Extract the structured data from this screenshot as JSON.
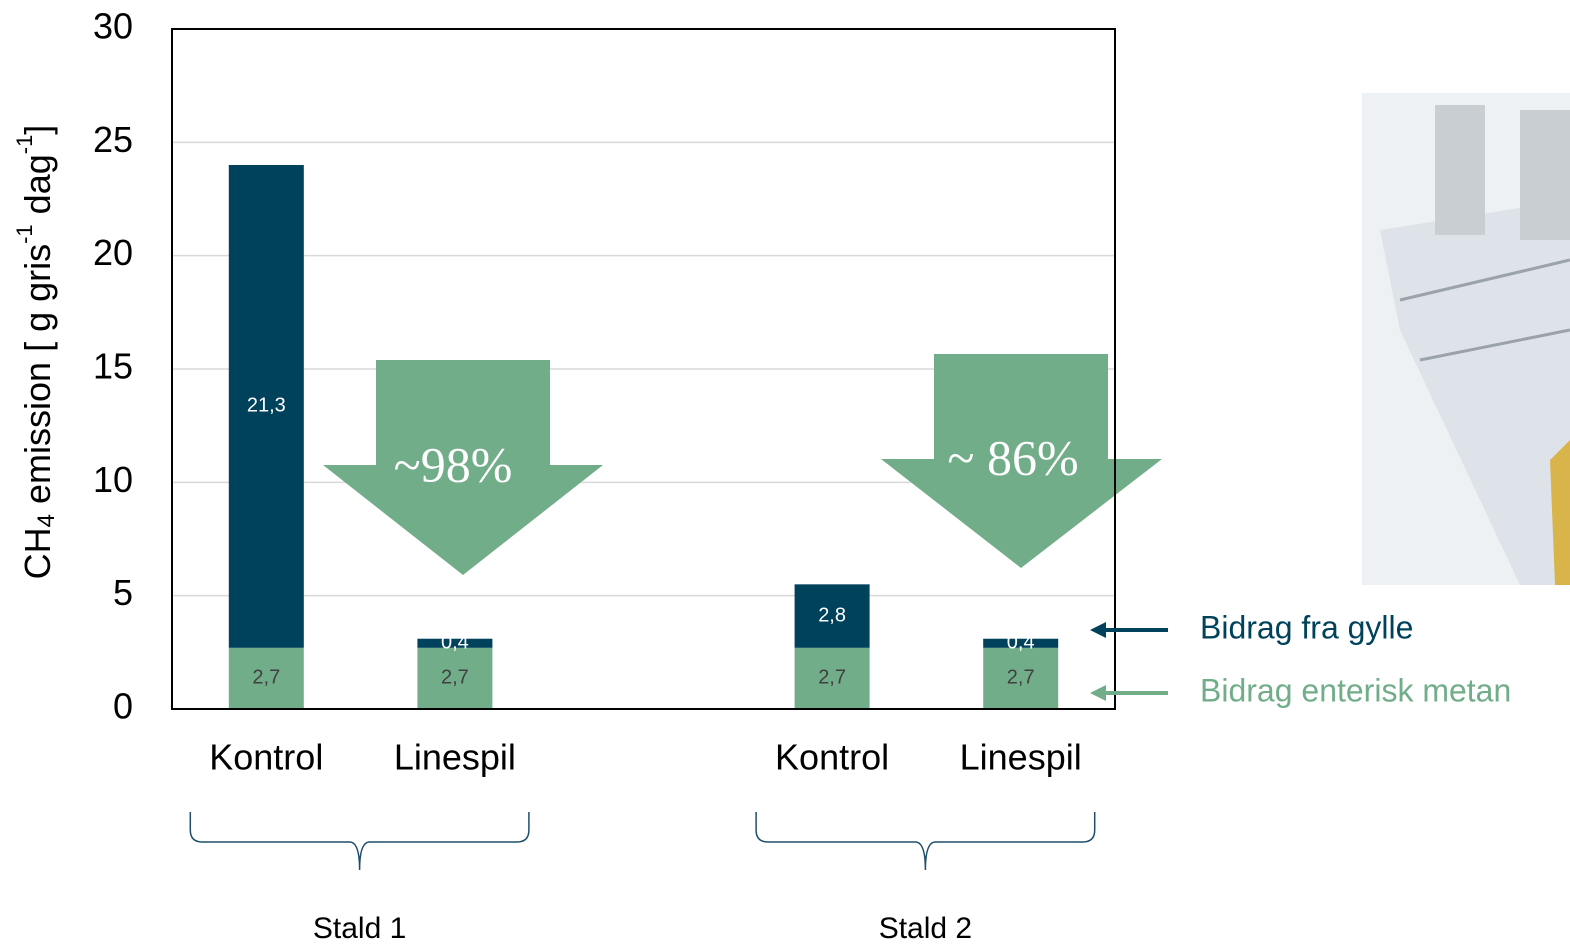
{
  "chart_data": {
    "type": "stacked-bar",
    "ylabel_parts": [
      "CH",
      "4",
      " emission [ g gris",
      "-1",
      " dag",
      "-1",
      "]"
    ],
    "categories": [
      "Kontrol",
      "Linespil",
      null,
      "Kontrol",
      "Linespil"
    ],
    "groups": [
      "Stald 1",
      "Stald 2"
    ],
    "series": [
      {
        "name": "Bidrag enterisk metan",
        "color": "#72ad8a",
        "values": [
          2.7,
          2.7,
          null,
          2.7,
          2.7
        ],
        "value_labels": [
          "2,7",
          "2,7",
          null,
          "2,7",
          "2,7"
        ]
      },
      {
        "name": "Bidrag fra gylle",
        "color": "#00415b",
        "values": [
          21.3,
          0.4,
          null,
          2.8,
          0.4
        ],
        "value_labels": [
          "21,3",
          "0,4",
          null,
          "2,8",
          "0,4"
        ]
      }
    ],
    "annotations": [
      "~98%",
      "~ 86%"
    ],
    "ylim": [
      0,
      30
    ],
    "yticks": [
      0,
      5,
      10,
      15,
      20,
      25,
      30
    ],
    "grid": true,
    "legend": "right"
  }
}
